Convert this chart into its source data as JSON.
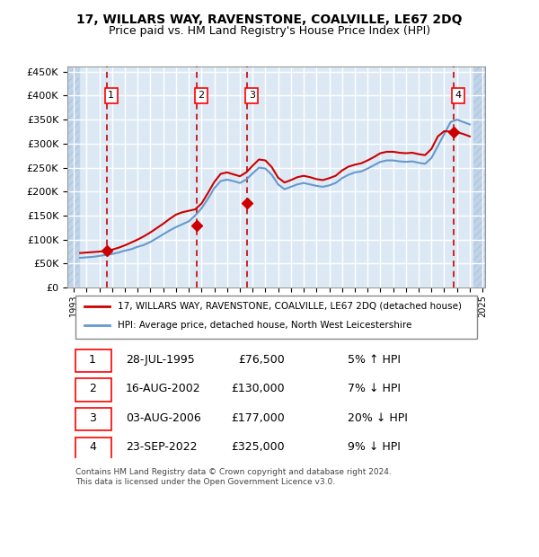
{
  "title": "17, WILLARS WAY, RAVENSTONE, COALVILLE, LE67 2DQ",
  "subtitle": "Price paid vs. HM Land Registry's House Price Index (HPI)",
  "ylabel": "",
  "ylim": [
    0,
    460000
  ],
  "yticks": [
    0,
    50000,
    100000,
    150000,
    200000,
    250000,
    300000,
    350000,
    400000,
    450000
  ],
  "ytick_labels": [
    "£0",
    "£50K",
    "£100K",
    "£150K",
    "£200K",
    "£250K",
    "£300K",
    "£350K",
    "£400K",
    "£450K"
  ],
  "background_color": "#dce9f5",
  "hatch_color": "#c0d4e8",
  "grid_color": "#ffffff",
  "sale_dates": [
    "1995-07-28",
    "2002-08-16",
    "2006-08-03",
    "2022-09-23"
  ],
  "sale_prices": [
    76500,
    130000,
    177000,
    325000
  ],
  "sale_labels": [
    "1",
    "2",
    "3",
    "4"
  ],
  "legend_line1": "17, WILLARS WAY, RAVENSTONE, COALVILLE, LE67 2DQ (detached house)",
  "legend_line2": "HPI: Average price, detached house, North West Leicestershire",
  "table_data": [
    [
      "1",
      "28-JUL-1995",
      "£76,500",
      "5% ↑ HPI"
    ],
    [
      "2",
      "16-AUG-2002",
      "£130,000",
      "7% ↓ HPI"
    ],
    [
      "3",
      "03-AUG-2006",
      "£177,000",
      "20% ↓ HPI"
    ],
    [
      "4",
      "23-SEP-2022",
      "£325,000",
      "9% ↓ HPI"
    ]
  ],
  "footer": "Contains HM Land Registry data © Crown copyright and database right 2024.\nThis data is licensed under the Open Government Licence v3.0.",
  "sale_color": "#cc0000",
  "hpi_color": "#6699cc",
  "dashed_color": "#cc0000",
  "hpi_data_x": [
    1993.5,
    1994.0,
    1994.5,
    1995.0,
    1995.5,
    1996.0,
    1996.5,
    1997.0,
    1997.5,
    1998.0,
    1998.5,
    1999.0,
    1999.5,
    2000.0,
    2000.5,
    2001.0,
    2001.5,
    2002.0,
    2002.5,
    2003.0,
    2003.5,
    2004.0,
    2004.5,
    2005.0,
    2005.5,
    2006.0,
    2006.5,
    2007.0,
    2007.5,
    2008.0,
    2008.5,
    2009.0,
    2009.5,
    2010.0,
    2010.5,
    2011.0,
    2011.5,
    2012.0,
    2012.5,
    2013.0,
    2013.5,
    2014.0,
    2014.5,
    2015.0,
    2015.5,
    2016.0,
    2016.5,
    2017.0,
    2017.5,
    2018.0,
    2018.5,
    2019.0,
    2019.5,
    2020.0,
    2020.5,
    2021.0,
    2021.5,
    2022.0,
    2022.5,
    2023.0,
    2023.5,
    2024.0
  ],
  "hpi_data_y": [
    62000,
    63000,
    64000,
    66000,
    68000,
    70000,
    73000,
    77000,
    80000,
    85000,
    89000,
    95000,
    103000,
    111000,
    119000,
    126000,
    132000,
    138000,
    150000,
    165000,
    185000,
    207000,
    222000,
    225000,
    222000,
    218000,
    225000,
    238000,
    250000,
    248000,
    235000,
    215000,
    205000,
    210000,
    215000,
    218000,
    215000,
    212000,
    210000,
    213000,
    218000,
    228000,
    235000,
    240000,
    242000,
    248000,
    255000,
    262000,
    265000,
    265000,
    263000,
    262000,
    263000,
    260000,
    258000,
    270000,
    295000,
    320000,
    345000,
    350000,
    345000,
    340000
  ],
  "price_line_x": [
    1993.5,
    1994.0,
    1994.5,
    1995.0,
    1995.5,
    1996.0,
    1996.5,
    1997.0,
    1997.5,
    1998.0,
    1998.5,
    1999.0,
    1999.5,
    2000.0,
    2000.5,
    2001.0,
    2001.5,
    2002.0,
    2002.5,
    2003.0,
    2003.5,
    2004.0,
    2004.5,
    2005.0,
    2005.5,
    2006.0,
    2006.5,
    2007.0,
    2007.5,
    2008.0,
    2008.5,
    2009.0,
    2009.5,
    2010.0,
    2010.5,
    2011.0,
    2011.5,
    2012.0,
    2012.5,
    2013.0,
    2013.5,
    2014.0,
    2014.5,
    2015.0,
    2015.5,
    2016.0,
    2016.5,
    2017.0,
    2017.5,
    2018.0,
    2018.5,
    2019.0,
    2019.5,
    2020.0,
    2020.5,
    2021.0,
    2021.5,
    2022.0,
    2022.5,
    2023.0,
    2023.5,
    2024.0
  ],
  "price_line_y": [
    72000,
    73000,
    74000,
    75000,
    76500,
    79000,
    83000,
    88000,
    94000,
    100000,
    107000,
    115000,
    124000,
    133000,
    143000,
    152000,
    157000,
    160000,
    163000,
    175000,
    197000,
    220000,
    237000,
    240000,
    236000,
    232000,
    240000,
    254000,
    267000,
    265000,
    251000,
    229000,
    219000,
    224000,
    230000,
    233000,
    230000,
    226000,
    224000,
    228000,
    233000,
    244000,
    252000,
    256000,
    259000,
    265000,
    272000,
    280000,
    283000,
    283000,
    281000,
    280000,
    281000,
    278000,
    276000,
    289000,
    315000,
    326000,
    325000,
    324000,
    320000,
    315000
  ]
}
